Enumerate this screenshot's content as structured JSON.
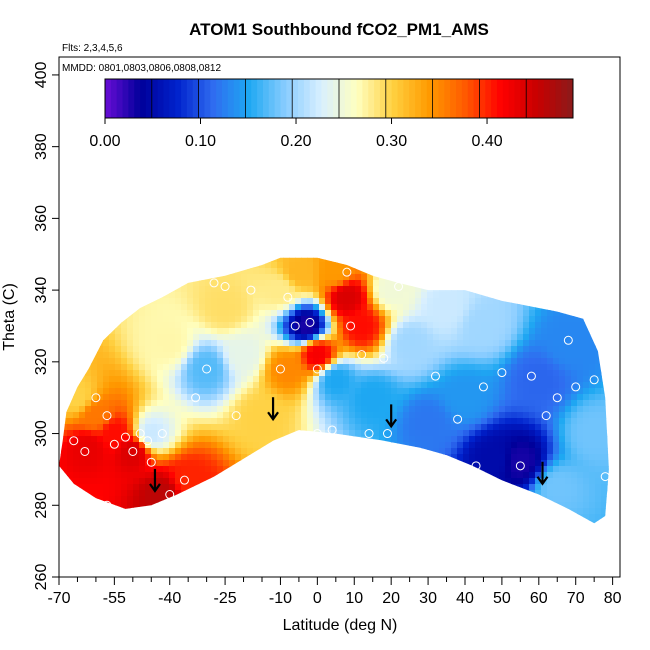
{
  "chart_data": {
    "type": "heatmap",
    "title": "ATOM1 Southbound fCO2_PM1_AMS",
    "subtitle_flights": "Flts: 2,3,4,5,6",
    "subtitle_dates": "MMDD: 0801,0803,0806,0808,0812",
    "xlabel": "Latitude (deg N)",
    "ylabel": "Theta (C)",
    "xlim": [
      -70,
      82
    ],
    "ylim": [
      260,
      405
    ],
    "x_ticks": [
      -70,
      -55,
      -40,
      -25,
      -10,
      0,
      10,
      20,
      30,
      40,
      50,
      60,
      70,
      80
    ],
    "x_minor_ticks": [
      -65,
      -60,
      -50,
      -45,
      -35,
      -30,
      -20,
      -15,
      -5,
      5,
      15,
      25,
      35,
      45,
      55,
      65,
      75
    ],
    "y_ticks": [
      260,
      280,
      300,
      320,
      340,
      360,
      380,
      400
    ],
    "colorbar": {
      "min": 0.0,
      "max": 0.49,
      "tick_values": [
        0.0,
        0.1,
        0.2,
        0.3,
        0.4
      ],
      "tick_labels": [
        "0.00",
        "0.10",
        "0.20",
        "0.30",
        "0.40"
      ],
      "colors": [
        "#6a0dd6",
        "#00009a",
        "#0022cc",
        "#2f6cf0",
        "#1ea8f2",
        "#88ccff",
        "#d8efff",
        "#ffffc0",
        "#ffd040",
        "#ff9a00",
        "#ff5a00",
        "#ff0000",
        "#c80000",
        "#8b1a1a"
      ]
    },
    "domain_outline": [
      [
        -70,
        291
      ],
      [
        -69,
        298
      ],
      [
        -68,
        306
      ],
      [
        -65,
        313
      ],
      [
        -62,
        318
      ],
      [
        -58,
        326
      ],
      [
        -53,
        331
      ],
      [
        -48,
        335
      ],
      [
        -42,
        338
      ],
      [
        -35,
        342
      ],
      [
        -25,
        344
      ],
      [
        -15,
        347
      ],
      [
        -10,
        349
      ],
      [
        0,
        349
      ],
      [
        8,
        347
      ],
      [
        15,
        344
      ],
      [
        22,
        342
      ],
      [
        30,
        340
      ],
      [
        40,
        340
      ],
      [
        50,
        337
      ],
      [
        55,
        336
      ],
      [
        65,
        334
      ],
      [
        72,
        332
      ],
      [
        76,
        323
      ],
      [
        78,
        310
      ],
      [
        79,
        290
      ],
      [
        78,
        277
      ],
      [
        75,
        275
      ],
      [
        68,
        279
      ],
      [
        60,
        283
      ],
      [
        50,
        287
      ],
      [
        42,
        291
      ],
      [
        35,
        294
      ],
      [
        28,
        296
      ],
      [
        18,
        298
      ],
      [
        5,
        300
      ],
      [
        -5,
        301
      ],
      [
        -12,
        298
      ],
      [
        -20,
        293
      ],
      [
        -28,
        288
      ],
      [
        -38,
        283
      ],
      [
        -45,
        280
      ],
      [
        -52,
        279
      ],
      [
        -60,
        282
      ],
      [
        -66,
        286
      ]
    ],
    "field_points": [
      {
        "lat": -62,
        "theta": 296,
        "value": 0.43
      },
      {
        "lat": -55,
        "theta": 300,
        "value": 0.41
      },
      {
        "lat": -50,
        "theta": 295,
        "value": 0.44
      },
      {
        "lat": -60,
        "theta": 305,
        "value": 0.36
      },
      {
        "lat": -42,
        "theta": 283,
        "value": 0.46
      },
      {
        "lat": -35,
        "theta": 287,
        "value": 0.4
      },
      {
        "lat": -30,
        "theta": 318,
        "value": 0.17
      },
      {
        "lat": -20,
        "theta": 322,
        "value": 0.24
      },
      {
        "lat": -15,
        "theta": 305,
        "value": 0.3
      },
      {
        "lat": -8,
        "theta": 318,
        "value": 0.35
      },
      {
        "lat": -5,
        "theta": 345,
        "value": 0.32
      },
      {
        "lat": -3,
        "theta": 330,
        "value": 0.03
      },
      {
        "lat": 0,
        "theta": 322,
        "value": 0.42
      },
      {
        "lat": 8,
        "theta": 338,
        "value": 0.44
      },
      {
        "lat": 12,
        "theta": 330,
        "value": 0.41
      },
      {
        "lat": 5,
        "theta": 315,
        "value": 0.15
      },
      {
        "lat": 15,
        "theta": 310,
        "value": 0.15
      },
      {
        "lat": 25,
        "theta": 325,
        "value": 0.2
      },
      {
        "lat": 30,
        "theta": 303,
        "value": 0.12
      },
      {
        "lat": 35,
        "theta": 335,
        "value": 0.22
      },
      {
        "lat": 40,
        "theta": 310,
        "value": 0.14
      },
      {
        "lat": 48,
        "theta": 293,
        "value": 0.05
      },
      {
        "lat": 55,
        "theta": 292,
        "value": 0.03
      },
      {
        "lat": 60,
        "theta": 315,
        "value": 0.11
      },
      {
        "lat": 68,
        "theta": 325,
        "value": 0.13
      },
      {
        "lat": 75,
        "theta": 300,
        "value": 0.18
      },
      {
        "lat": -65,
        "theta": 310,
        "value": 0.3
      },
      {
        "lat": -45,
        "theta": 300,
        "value": 0.22
      },
      {
        "lat": -40,
        "theta": 325,
        "value": 0.27
      },
      {
        "lat": -25,
        "theta": 335,
        "value": 0.29
      },
      {
        "lat": 20,
        "theta": 340,
        "value": 0.25
      },
      {
        "lat": 45,
        "theta": 330,
        "value": 0.2
      },
      {
        "lat": 65,
        "theta": 285,
        "value": 0.18
      },
      {
        "lat": -10,
        "theta": 340,
        "value": 0.28
      },
      {
        "lat": 5,
        "theta": 345,
        "value": 0.34
      }
    ],
    "observation_points": [
      [
        -66,
        298
      ],
      [
        -63,
        295
      ],
      [
        -60,
        310
      ],
      [
        -57,
        305
      ],
      [
        -55,
        297
      ],
      [
        -52,
        299
      ],
      [
        -50,
        295
      ],
      [
        -48,
        300
      ],
      [
        -46,
        298
      ],
      [
        -45,
        292
      ],
      [
        -42,
        300
      ],
      [
        -40,
        283
      ],
      [
        -36,
        287
      ],
      [
        -33,
        310
      ],
      [
        -30,
        318
      ],
      [
        -28,
        342
      ],
      [
        -22,
        305
      ],
      [
        -18,
        340
      ],
      [
        -10,
        318
      ],
      [
        -8,
        338
      ],
      [
        -6,
        330
      ],
      [
        -2,
        331
      ],
      [
        0,
        300
      ],
      [
        0,
        318
      ],
      [
        4,
        301
      ],
      [
        8,
        345
      ],
      [
        9,
        330
      ],
      [
        12,
        322
      ],
      [
        14,
        300
      ],
      [
        18,
        321
      ],
      [
        19,
        300
      ],
      [
        22,
        341
      ],
      [
        32,
        316
      ],
      [
        35,
        343
      ],
      [
        38,
        304
      ],
      [
        43,
        291
      ],
      [
        45,
        313
      ],
      [
        50,
        317
      ],
      [
        55,
        291
      ],
      [
        58,
        316
      ],
      [
        62,
        305
      ],
      [
        65,
        310
      ],
      [
        68,
        326
      ],
      [
        70,
        313
      ],
      [
        75,
        315
      ],
      [
        78,
        288
      ],
      [
        -57,
        280
      ],
      [
        -25,
        341
      ]
    ],
    "arrows": [
      {
        "lat": -44,
        "theta": 284
      },
      {
        "lat": -12,
        "theta": 304
      },
      {
        "lat": 20,
        "theta": 302
      },
      {
        "lat": 61,
        "theta": 286
      }
    ]
  }
}
